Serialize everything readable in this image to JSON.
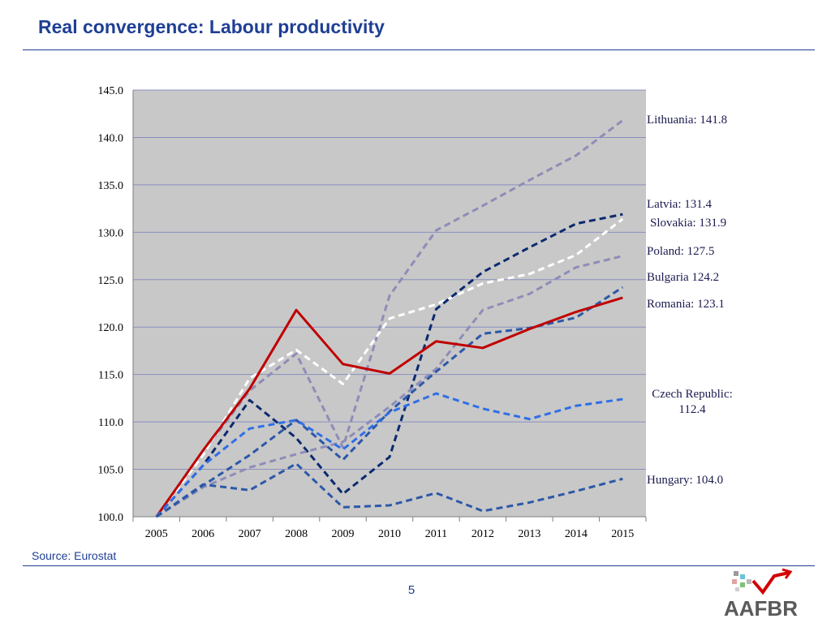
{
  "page": {
    "title": "Real convergence: Labour productivity",
    "source": "Source: Eurostat",
    "page_number": "5",
    "logo_text": "AAFBR"
  },
  "colors": {
    "title": "#1f3f94",
    "plot_background": "#c8c8c8",
    "gridline": "#8a8fc0"
  },
  "chart_data": {
    "type": "line",
    "title": "",
    "xlabel": "",
    "ylabel": "",
    "x": [
      "2005",
      "2006",
      "2007",
      "2008",
      "2009",
      "2010",
      "2011",
      "2012",
      "2013",
      "2014",
      "2015"
    ],
    "ylim": [
      100,
      145
    ],
    "yticks": [
      "100.0",
      "105.0",
      "110.0",
      "115.0",
      "120.0",
      "125.0",
      "130.0",
      "135.0",
      "140.0",
      "145.0"
    ],
    "grid": true,
    "legend": "end-of-line labels",
    "series": [
      {
        "name": "Lithuania",
        "color": "#8e8cb8",
        "dash": true,
        "width": 3,
        "values": [
          100,
          106.8,
          113.3,
          117.2,
          107.3,
          123.3,
          130.2,
          132.8,
          135.5,
          138.1,
          141.8
        ]
      },
      {
        "name": "Latvia",
        "color": "#ffffff",
        "dash": true,
        "width": 3,
        "values": [
          100,
          106.5,
          114.6,
          117.6,
          114.0,
          120.9,
          122.4,
          124.6,
          125.6,
          127.6,
          131.4
        ]
      },
      {
        "name": "Slovakia",
        "color": "#0b2a6e",
        "dash": true,
        "width": 3,
        "values": [
          100,
          105.4,
          112.3,
          108.3,
          102.4,
          106.3,
          121.9,
          125.8,
          128.4,
          130.9,
          131.9
        ]
      },
      {
        "name": "Poland",
        "color": "#8e8cb8",
        "dash": true,
        "width": 3,
        "values": [
          100,
          103.1,
          105.2,
          106.6,
          107.9,
          111.6,
          115.6,
          121.8,
          123.5,
          126.3,
          127.5
        ]
      },
      {
        "name": "Bulgaria",
        "color": "#2c58a8",
        "dash": true,
        "width": 3,
        "values": [
          100,
          103.3,
          106.5,
          110.2,
          106.0,
          111.1,
          115.3,
          119.3,
          119.9,
          121.0,
          124.2
        ]
      },
      {
        "name": "Romania",
        "color": "#c00000",
        "dash": false,
        "width": 3,
        "values": [
          100,
          107.0,
          113.5,
          121.8,
          116.1,
          115.1,
          118.5,
          117.8,
          119.8,
          121.6,
          123.1
        ]
      },
      {
        "name": "Czech Republic",
        "color": "#2f6fe6",
        "dash": true,
        "width": 3,
        "values": [
          100,
          105.4,
          109.3,
          110.2,
          107.1,
          111.0,
          113.0,
          111.4,
          110.3,
          111.7,
          112.4
        ]
      },
      {
        "name": "Hungary",
        "color": "#2c58a8",
        "dash": true,
        "width": 3,
        "values": [
          100,
          103.4,
          102.8,
          105.6,
          101.0,
          101.2,
          102.5,
          100.6,
          101.5,
          102.7,
          104.0
        ]
      }
    ],
    "end_labels": [
      {
        "text": "Lithuania: 141.8",
        "series": "Lithuania"
      },
      {
        "text": "Latvia: 131.4",
        "series": "Latvia"
      },
      {
        "text": "Slovakia: 131.9",
        "series": "Slovakia"
      },
      {
        "text": "Poland: 127.5",
        "series": "Poland"
      },
      {
        "text": "Bulgaria 124.2",
        "series": "Bulgaria"
      },
      {
        "text": "Romania: 123.1",
        "series": "Romania"
      },
      {
        "text": "Czech Republic:",
        "series": "Czech Republic"
      },
      {
        "text": "112.4",
        "series": "Czech Republic"
      },
      {
        "text": "Hungary: 104.0",
        "series": "Hungary"
      }
    ]
  }
}
